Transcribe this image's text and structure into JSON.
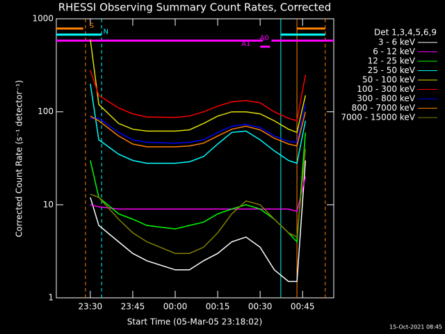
{
  "chart_data": {
    "type": "line",
    "title": "RHESSI Observing Summary Count Rates, Corrected",
    "ylabel": "Corrected Count Rate (s⁻¹ detector⁻¹)",
    "xlabel": "Start Time (05-Mar-05 23:18:02)",
    "legend_title": "Det 1,3,4,5,6,9",
    "footer": "15-Oct-2021 08:45",
    "log_y": true,
    "xlim": [
      0,
      98
    ],
    "xticks": [
      {
        "value": 12,
        "label": "23:30"
      },
      {
        "value": 27,
        "label": "23:45"
      },
      {
        "value": 42,
        "label": "00:00"
      },
      {
        "value": 57,
        "label": "00:15"
      },
      {
        "value": 72,
        "label": "00:30"
      },
      {
        "value": 87,
        "label": "00:45"
      }
    ],
    "ylim": [
      1,
      1000
    ],
    "yticks": [
      1,
      10,
      100,
      1000
    ],
    "x": [
      12,
      15,
      22,
      27,
      32,
      42,
      47,
      52,
      57,
      62,
      67,
      72,
      77,
      82,
      85,
      88
    ],
    "series": [
      {
        "name": "3 - 6 keV",
        "color": "#ffffff",
        "values": [
          12,
          6,
          4,
          3,
          2.5,
          2,
          2,
          2.5,
          3,
          4,
          4.5,
          3.5,
          2,
          1.5,
          1.5,
          30
        ]
      },
      {
        "name": "6 - 12 keV",
        "color": "#ff00ff",
        "values": [
          10,
          9.5,
          9,
          9,
          9,
          9,
          9,
          9,
          9,
          9,
          9,
          9,
          9,
          9,
          8.5,
          20
        ]
      },
      {
        "name": "12 - 25 keV",
        "color": "#00ff00",
        "values": [
          30,
          12,
          8,
          7,
          6,
          5.5,
          6,
          6.5,
          8,
          9,
          10,
          9,
          7,
          5,
          4,
          60
        ]
      },
      {
        "name": "25 - 50 keV",
        "color": "#00ffff",
        "values": [
          200,
          50,
          35,
          30,
          28,
          28,
          29,
          33,
          45,
          60,
          62,
          50,
          38,
          30,
          28,
          80
        ]
      },
      {
        "name": "50 - 100 keV",
        "color": "#e0e000",
        "values": [
          600,
          120,
          75,
          65,
          62,
          62,
          64,
          75,
          90,
          100,
          100,
          95,
          80,
          65,
          60,
          150
        ]
      },
      {
        "name": "100 - 300 keV",
        "color": "#ff0000",
        "values": [
          280,
          150,
          110,
          95,
          88,
          87,
          90,
          100,
          115,
          128,
          132,
          125,
          100,
          85,
          80,
          250
        ]
      },
      {
        "name": "300 - 800 keV",
        "color": "#0000ff",
        "values": [
          85,
          85,
          60,
          50,
          47,
          46,
          47,
          50,
          60,
          70,
          73,
          68,
          55,
          48,
          47,
          120
        ]
      },
      {
        "name": "800 - 7000 keV",
        "color": "#ff8000",
        "values": [
          90,
          80,
          55,
          45,
          42,
          42,
          43,
          46,
          55,
          65,
          70,
          64,
          52,
          45,
          43,
          100
        ]
      },
      {
        "name": "7000 - 15000 keV",
        "color": "#808000",
        "values": [
          13,
          12,
          7,
          5,
          4,
          3,
          3,
          3.5,
          5,
          8,
          11,
          10,
          7,
          5,
          4.5,
          40
        ]
      }
    ],
    "flags": [
      {
        "label": "S",
        "color": "#ff8000",
        "label_x": 12.5,
        "spans": [
          [
            0,
            9.5
          ],
          [
            85,
            95
          ]
        ]
      },
      {
        "label": "N",
        "color": "#00ffff",
        "label_x": 17.5,
        "spans": [
          [
            0,
            16
          ],
          [
            79.3,
            95
          ]
        ]
      },
      {
        "label": "A0",
        "color": "#ff00ff",
        "label_x": 73.5,
        "spans": [
          [
            0,
            73
          ],
          [
            76,
            98
          ]
        ]
      },
      {
        "label": "A1",
        "color": "#ff00ff",
        "label_x": 67,
        "spans": [
          [
            72,
            75.5
          ]
        ]
      }
    ],
    "markers": [
      {
        "x": 10.3,
        "color": "#ff8000",
        "dashed": true
      },
      {
        "x": 16,
        "color": "#00ffff",
        "dashed": true
      },
      {
        "x": 79.3,
        "color": "#00ffff",
        "dashed": false
      },
      {
        "x": 85,
        "color": "#ff8000",
        "dashed": false
      },
      {
        "x": 95,
        "color": "#ff8000",
        "dashed": true
      }
    ]
  }
}
